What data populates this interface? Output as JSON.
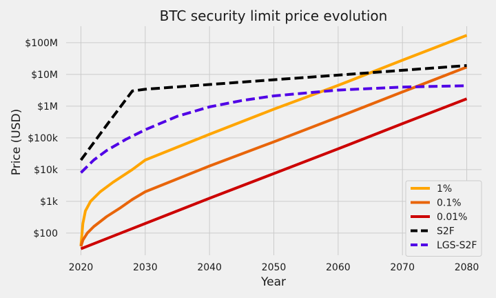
{
  "chart_data": {
    "type": "line",
    "title": "BTC security limit price evolution",
    "xlabel": "Year",
    "ylabel": "Price (USD)",
    "yscale": "log",
    "xlim": [
      2017.7,
      2082.3
    ],
    "ylim": [
      20,
      330000000
    ],
    "xticks": [
      2020,
      2030,
      2040,
      2050,
      2060,
      2070,
      2080
    ],
    "yticks": [
      {
        "value": 100,
        "label": "$100"
      },
      {
        "value": 1000,
        "label": "$1k"
      },
      {
        "value": 10000,
        "label": "$10k"
      },
      {
        "value": 100000,
        "label": "$100k"
      },
      {
        "value": 1000000,
        "label": "$1M"
      },
      {
        "value": 10000000,
        "label": "$10M"
      },
      {
        "value": 100000000,
        "label": "$100M"
      }
    ],
    "grid": true,
    "legend_position": "bottom-right",
    "series": [
      {
        "name": "1%",
        "color": "#ffa500",
        "dash": "solid",
        "x": [
          2020,
          2020.3,
          2020.7,
          2021.5,
          2023,
          2025,
          2028,
          2030,
          2040,
          2050,
          2060,
          2070,
          2080
        ],
        "y": [
          40,
          200,
          500,
          1000,
          2000,
          4000,
          10000,
          20000,
          130000,
          800000,
          4500000,
          28000000,
          170000000
        ]
      },
      {
        "name": "0.1%",
        "color": "#e8650a",
        "dash": "solid",
        "x": [
          2020,
          2020.3,
          2021,
          2022,
          2024,
          2026,
          2028,
          2030,
          2040,
          2050,
          2060,
          2070,
          2080
        ],
        "y": [
          38,
          60,
          100,
          160,
          330,
          600,
          1150,
          2000,
          13000,
          75000,
          450000,
          2800000,
          17000000
        ]
      },
      {
        "name": "0.01%",
        "color": "#cc0000",
        "dash": "solid",
        "x": [
          2020,
          2025,
          2030,
          2040,
          2050,
          2060,
          2070,
          2080
        ],
        "y": [
          32,
          80,
          200,
          1250,
          7500,
          45000,
          280000,
          1700000
        ]
      },
      {
        "name": "S2F",
        "color": "#000000",
        "dash": "dashed",
        "x": [
          2020,
          2024,
          2028,
          2030,
          2040,
          2050,
          2060,
          2070,
          2080
        ],
        "y": [
          20000,
          250000,
          3000000,
          3400000,
          4800000,
          6800000,
          9500000,
          13500000,
          19000000
        ]
      },
      {
        "name": "LGS-S2F",
        "color": "#5000e6",
        "dash": "dashed",
        "x": [
          2020,
          2022,
          2024,
          2027,
          2030,
          2035,
          2040,
          2045,
          2050,
          2060,
          2070,
          2080
        ],
        "y": [
          8000,
          20000,
          40000,
          90000,
          180000,
          480000,
          950000,
          1500000,
          2100000,
          3200000,
          4000000,
          4400000
        ]
      }
    ]
  }
}
